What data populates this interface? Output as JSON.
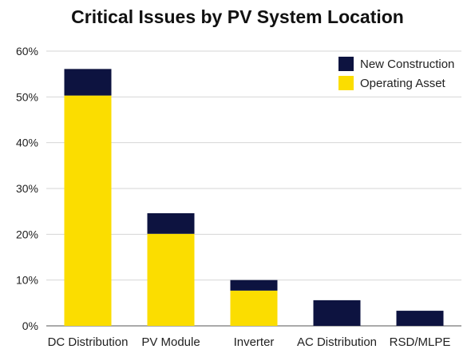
{
  "chart_data": {
    "type": "bar",
    "stacked": true,
    "title": "Critical Issues by PV System Location",
    "categories": [
      "DC Distribution",
      "PV Module",
      "Inverter",
      "AC Distribution",
      "RSD/MLPE"
    ],
    "series": [
      {
        "name": "Operating Asset",
        "color": "#FBDD00",
        "values": [
          50.3,
          20.1,
          7.7,
          0.0,
          0.0
        ]
      },
      {
        "name": "New Construction",
        "color": "#0D1340",
        "values": [
          5.8,
          4.5,
          2.3,
          5.6,
          3.3
        ]
      }
    ],
    "ylim": [
      0,
      60
    ],
    "yticks": [
      "0%",
      "10%",
      "20%",
      "30%",
      "40%",
      "50%",
      "60%"
    ],
    "grid": true,
    "legend_position": "top-right",
    "legend": [
      {
        "name": "New Construction",
        "color": "#0D1340"
      },
      {
        "name": "Operating Asset",
        "color": "#FBDD00"
      }
    ]
  }
}
